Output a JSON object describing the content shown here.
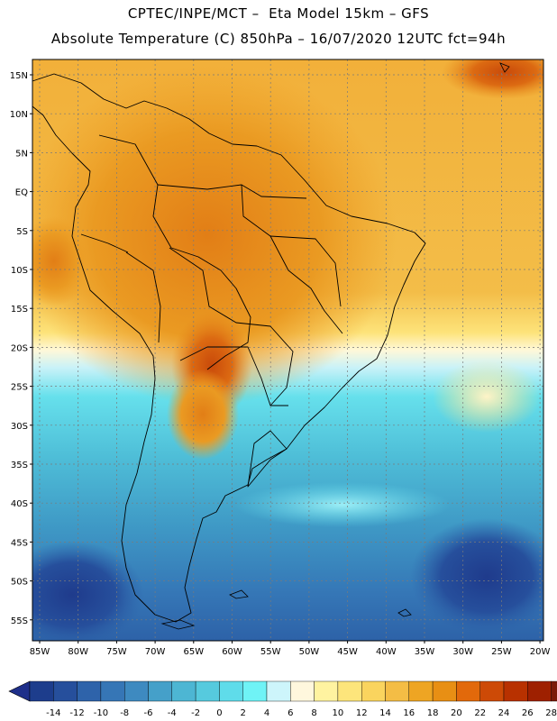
{
  "header": {
    "title_line1": "CPTEC/INPE/MCT –  Eta Model 15km – GFS",
    "title_line2": "Absolute Temperature (C) 850hPa – 16/07/2020 12UTC fct=94h"
  },
  "map": {
    "lat_labels": [
      "15N",
      "10N",
      "5N",
      "EQ",
      "5S",
      "10S",
      "15S",
      "20S",
      "25S",
      "30S",
      "35S",
      "40S",
      "45S",
      "50S",
      "55S"
    ],
    "lon_labels": [
      "85W",
      "80W",
      "75W",
      "70W",
      "65W",
      "60W",
      "55W",
      "50W",
      "45W",
      "40W",
      "35W",
      "30W",
      "25W",
      "20W"
    ]
  },
  "colorbar": {
    "tick_labels": [
      "-14",
      "-12",
      "-10",
      "-8",
      "-6",
      "-4",
      "-2",
      "0",
      "2",
      "4",
      "6",
      "8",
      "10",
      "12",
      "14",
      "16",
      "18",
      "20",
      "22",
      "24",
      "26",
      "28"
    ],
    "colors": [
      "#1d3d8c",
      "#264f9c",
      "#2e63aa",
      "#3676b6",
      "#3e8ac0",
      "#45a0c9",
      "#4db6d3",
      "#56cade",
      "#5fdcea",
      "#6ff3f6",
      "#cdf5fb",
      "#fff7dd",
      "#fff3a0",
      "#fde57b",
      "#fad45e",
      "#f4bd45",
      "#eea523",
      "#e88f14",
      "#e2690b",
      "#cd4a06",
      "#b83100",
      "#9e2000",
      "#7a1a08"
    ],
    "low_color": "#1e2f8a",
    "high_color": "#8a0a22"
  }
}
